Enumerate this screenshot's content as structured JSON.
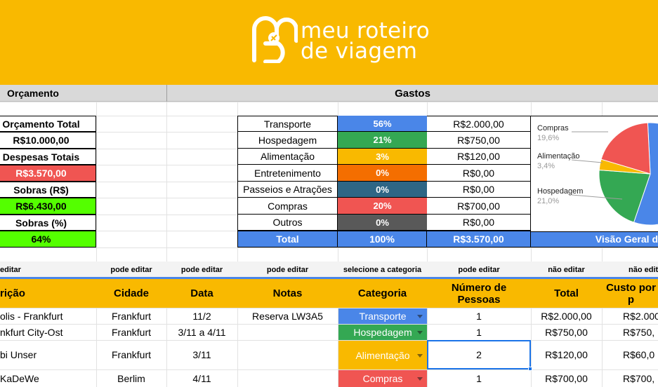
{
  "logo": {
    "line1": "meu roteiro",
    "line2": "de viagem"
  },
  "headers": {
    "orcamento": "Orçamento",
    "gastos": "Gastos"
  },
  "budget": [
    {
      "label": "Orçamento Total",
      "kind": "label"
    },
    {
      "label": "R$10.000,00",
      "kind": "value",
      "bg": "#ffffff"
    },
    {
      "label": "Despesas Totais",
      "kind": "label"
    },
    {
      "label": "R$3.570,00",
      "kind": "value",
      "bg": "#f05552",
      "color": "#ffffff"
    },
    {
      "label": "Sobras (R$)",
      "kind": "label"
    },
    {
      "label": "R$6.430,00",
      "kind": "value",
      "bg": "#54ff00"
    },
    {
      "label": "Sobras (%)",
      "kind": "label"
    },
    {
      "label": "64%",
      "kind": "value",
      "bg": "#54ff00"
    }
  ],
  "categories": [
    {
      "name": "Transporte",
      "pct": "56%",
      "amount": "R$2.000,00",
      "color": "#4a86e8"
    },
    {
      "name": "Hospedagem",
      "pct": "21%",
      "amount": "R$750,00",
      "color": "#34a853"
    },
    {
      "name": "Alimentação",
      "pct": "3%",
      "amount": "R$120,00",
      "color": "#f9b900"
    },
    {
      "name": "Entretenimento",
      "pct": "0%",
      "amount": "R$0,00",
      "color": "#f46e00"
    },
    {
      "name": "Passeios e Atrações",
      "pct": "0%",
      "amount": "R$0,00",
      "color": "#2f6685"
    },
    {
      "name": "Compras",
      "pct": "20%",
      "amount": "R$700,00",
      "color": "#f05552"
    },
    {
      "name": "Outros",
      "pct": "0%",
      "amount": "R$0,00",
      "color": "#595959"
    }
  ],
  "total_row": {
    "label": "Total",
    "pct": "100%",
    "amount": "R$3.570,00",
    "overview": "Visão Geral d",
    "color": "#4a86e8"
  },
  "chart_data": {
    "type": "pie",
    "categories": [
      "Transporte",
      "Hospedagem",
      "Alimentação",
      "Compras"
    ],
    "values": [
      56.0,
      21.0,
      3.4,
      19.6
    ],
    "colors": [
      "#4a86e8",
      "#34a853",
      "#f9b900",
      "#f05552"
    ],
    "labels": [
      {
        "name": "Compras",
        "pct": "19,6%"
      },
      {
        "name": "Alimentação",
        "pct": "3,4%"
      },
      {
        "name": "Hospedagem",
        "pct": "21,0%"
      }
    ]
  },
  "edit_hints": [
    "editar",
    "pode editar",
    "pode editar",
    "pode editar",
    "selecione a categoria",
    "pode editar",
    "não editar",
    "não edit"
  ],
  "table_headers": [
    "rição",
    "Cidade",
    "Data",
    "Notas",
    "Categoria",
    "Número de\nPessoas",
    "Total",
    "Custo por p"
  ],
  "rows": [
    {
      "desc": "olis - Frankfurt",
      "city": "Frankfurt",
      "date": "11/2",
      "notes": "Reserva LW3A5",
      "category": "Transporte",
      "cat_color": "#4a86e8",
      "people": "1",
      "total": "R$2.000,00",
      "per": "R$2.000"
    },
    {
      "desc": "nkfurt City-Ost",
      "city": "Frankfurt",
      "date": "3/11 a 4/11",
      "notes": "",
      "category": "Hospedagem",
      "cat_color": "#34a853",
      "people": "1",
      "total": "R$750,00",
      "per": "R$750,"
    },
    {
      "desc": "bi Unser",
      "city": "Frankfurt",
      "date": "3/11",
      "notes": "",
      "category": "Alimentação",
      "cat_color": "#f9b900",
      "people": "2",
      "total": "R$120,00",
      "per": "R$60,0"
    },
    {
      "desc": "KaDeWe",
      "city": "Berlim",
      "date": "4/11",
      "notes": "",
      "category": "Compras",
      "cat_color": "#f05552",
      "people": "1",
      "total": "R$700,00",
      "per": "R$700,"
    }
  ]
}
